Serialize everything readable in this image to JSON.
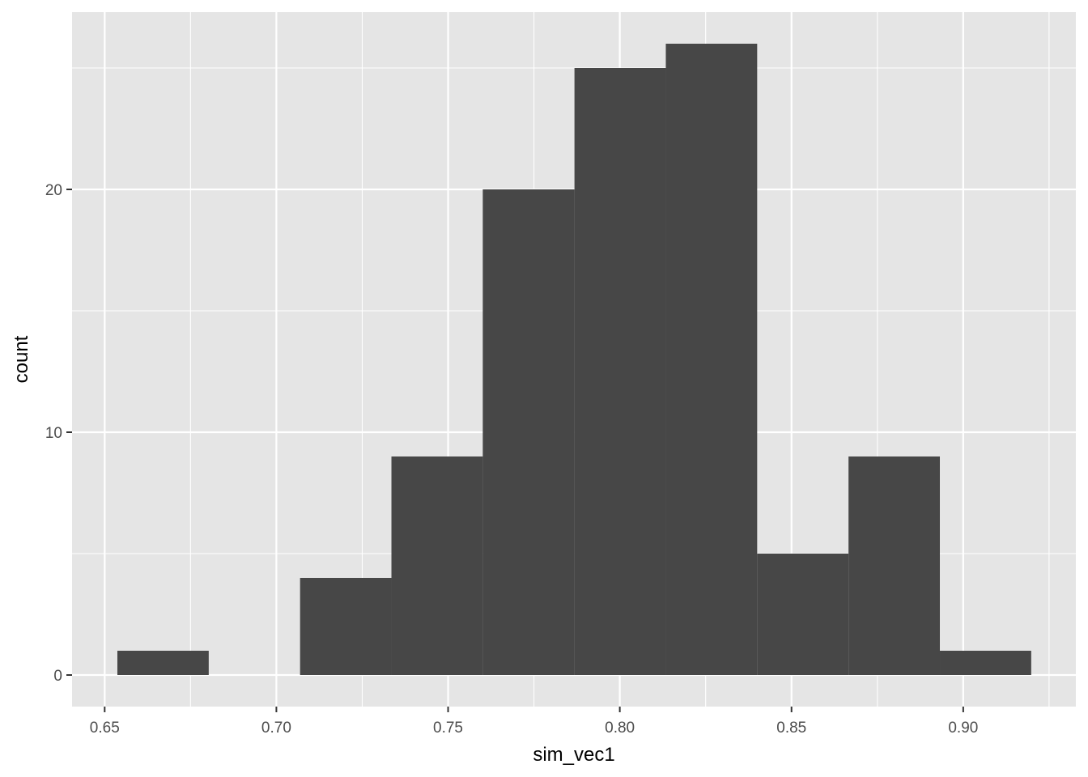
{
  "chart_data": {
    "type": "bar",
    "subtype": "histogram",
    "title": "",
    "xlabel": "sim_vec1",
    "ylabel": "count",
    "xlim": [
      0.6405,
      0.9328
    ],
    "ylim": [
      -1.3,
      27.3
    ],
    "x_ticks": [
      {
        "value": 0.65,
        "label": "0.65"
      },
      {
        "value": 0.7,
        "label": "0.70"
      },
      {
        "value": 0.75,
        "label": "0.75"
      },
      {
        "value": 0.8,
        "label": "0.80"
      },
      {
        "value": 0.85,
        "label": "0.85"
      },
      {
        "value": 0.9,
        "label": "0.90"
      }
    ],
    "y_ticks": [
      {
        "value": 0,
        "label": "0"
      },
      {
        "value": 10,
        "label": "10"
      },
      {
        "value": 20,
        "label": "20"
      }
    ],
    "bins": [
      {
        "x0": 0.6537,
        "x1": 0.6803,
        "count": 1
      },
      {
        "x0": 0.6803,
        "x1": 0.7069,
        "count": 0
      },
      {
        "x0": 0.7069,
        "x1": 0.7335,
        "count": 4
      },
      {
        "x0": 0.7335,
        "x1": 0.7601,
        "count": 9
      },
      {
        "x0": 0.7601,
        "x1": 0.7868,
        "count": 20
      },
      {
        "x0": 0.7868,
        "x1": 0.8134,
        "count": 25
      },
      {
        "x0": 0.8134,
        "x1": 0.84,
        "count": 26
      },
      {
        "x0": 0.84,
        "x1": 0.8666,
        "count": 5
      },
      {
        "x0": 0.8666,
        "x1": 0.8932,
        "count": 9
      },
      {
        "x0": 0.8932,
        "x1": 0.9198,
        "count": 1
      }
    ],
    "grid": true,
    "colors": {
      "panel": "#e5e5e5",
      "grid": "#ffffff",
      "bar": "#474747",
      "tick": "#333333"
    }
  }
}
